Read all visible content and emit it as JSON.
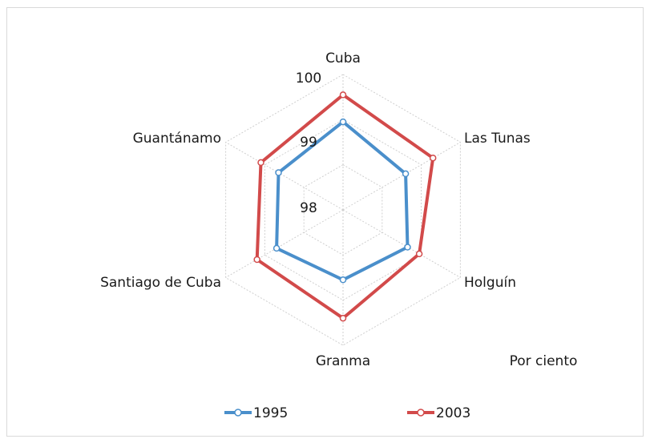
{
  "chart_data": {
    "type": "radar",
    "categories": [
      "Cuba",
      "Las Tunas",
      "Holguín",
      "Granma",
      "Santiago de Cuba",
      "Guantánamo"
    ],
    "r_ticks": [
      "100",
      "99",
      "98"
    ],
    "r_min": 97,
    "r_max": 100,
    "unit_note": "Por ciento",
    "series": [
      {
        "name": "1995",
        "color": "#4a8fcb",
        "values": [
          98.95,
          98.6,
          98.65,
          98.55,
          98.7,
          98.65
        ]
      },
      {
        "name": "2003",
        "color": "#d24a4a",
        "values": [
          99.55,
          99.3,
          98.95,
          99.4,
          99.2,
          99.1
        ]
      }
    ],
    "legend_position": "bottom",
    "grid": true
  }
}
